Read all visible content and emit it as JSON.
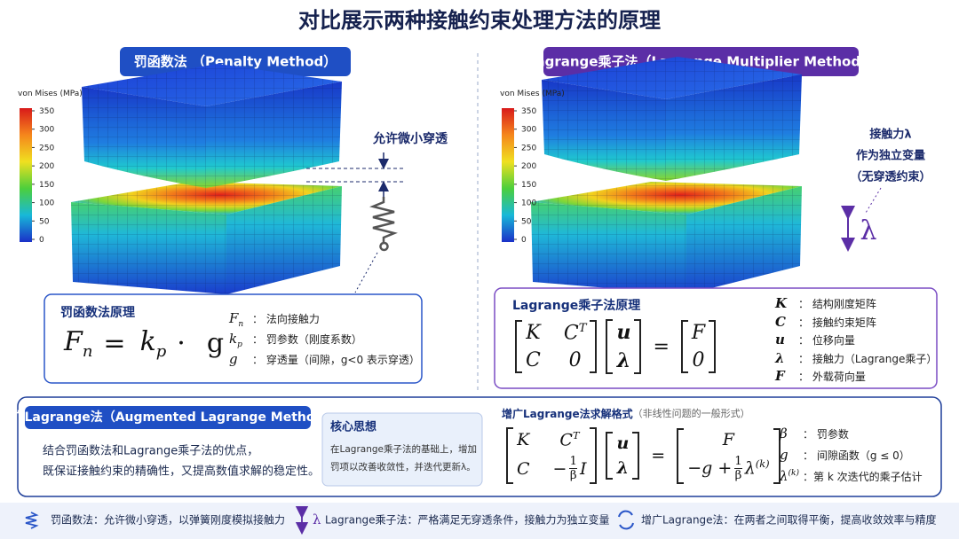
{
  "title": "对比展示两种接触约束处理方法的原理",
  "penalty": {
    "heading": "罚函数法 （Penalty Method）",
    "colorbar": {
      "label": "von Mises (MPa)",
      "ticks": [
        350,
        300,
        250,
        200,
        150,
        100,
        50,
        0
      ]
    },
    "annotation": "允许微小穿透",
    "principle": {
      "title": "罚函数法原理",
      "formula": [
        {
          "t": "F",
          "sub": "n"
        },
        "=",
        {
          "t": "k",
          "sub": "p"
        },
        "·",
        "g"
      ],
      "terms": [
        {
          "symbol": [
            {
              "t": "F",
              "sub": "n"
            }
          ],
          "desc": "：  法向接触力"
        },
        {
          "symbol": [
            {
              "t": "k",
              "sub": "p"
            }
          ],
          "desc": "：  罚参数（刚度系数）"
        },
        {
          "symbol": [
            "g"
          ],
          "desc": "：  穿透量（间隙，g<0 表示穿透）"
        }
      ]
    }
  },
  "lagrange": {
    "heading": "Lagrange乘子法（Lagrange Multiplier Method）",
    "colorbar": {
      "label": "von Mises (MPa)",
      "ticks": [
        350,
        300,
        250,
        200,
        150,
        100,
        50,
        0
      ]
    },
    "annotation": [
      "接触力λ",
      "作为独立变量",
      "（无穿透约束）"
    ],
    "arrow_label": "λ",
    "principle": {
      "title": "Lagrange乘子法原理",
      "equation": [
        {
          "matrix": [
            [
              [
                "K"
              ],
              [
                {
                  "t": "C",
                  "sup": "T"
                }
              ]
            ],
            [
              [
                "C"
              ],
              [
                "0"
              ]
            ]
          ]
        },
        {
          "matrix": [
            [
              [
                "u"
              ]
            ],
            [
              [
                "λ"
              ]
            ]
          ],
          "bold": true
        },
        "=",
        {
          "matrix": [
            [
              [
                "F"
              ]
            ],
            [
              [
                "0"
              ]
            ]
          ]
        }
      ],
      "terms": [
        {
          "symbol": [
            "K"
          ],
          "desc": "：  结构刚度矩阵"
        },
        {
          "symbol": [
            "C"
          ],
          "desc": "：  接触约束矩阵"
        },
        {
          "symbol": [
            "u"
          ],
          "desc": "：  位移向量"
        },
        {
          "symbol": [
            "λ"
          ],
          "desc": "：  接触力（Lagrange乘子）"
        },
        {
          "symbol": [
            "F"
          ],
          "desc": "：  外载荷向量"
        }
      ]
    }
  },
  "augmented": {
    "heading": "增广Lagrange法（Augmented Lagrange Method）",
    "description": [
      "结合罚函数法和Lagrange乘子法的优点，",
      "既保证接触约束的精确性，又提高数值求解的稳定性。"
    ],
    "core": {
      "title": "核心思想",
      "text": [
        "在Lagrange乘子法的基础上，增加",
        "罚项以改善收敛性，并迭代更新λ。"
      ]
    },
    "scheme": {
      "title": "增广Lagrange法求解格式",
      "subtitle": "（非线性问题的一般形式）",
      "equation": [
        {
          "matrix": [
            [
              [
                "K"
              ],
              [
                {
                  "t": "C",
                  "sup": "T"
                }
              ]
            ],
            [
              [
                "C"
              ],
              [
                "−",
                {
                  "num": "1",
                  "den": "β"
                },
                "I"
              ]
            ]
          ]
        },
        {
          "matrix": [
            [
              [
                "u"
              ]
            ],
            [
              [
                "λ"
              ]
            ]
          ],
          "bold": true
        },
        "=",
        {
          "matrix": [
            [
              [
                "F"
              ]
            ],
            [
              [
                "−g +",
                {
                  "num": "1",
                  "den": "β"
                },
                {
                  "t": "λ",
                  "sup": "(k)"
                }
              ]
            ]
          ]
        }
      ],
      "terms": [
        {
          "symbol": [
            "β"
          ],
          "desc": "：  罚参数"
        },
        {
          "symbol": [
            "g"
          ],
          "desc": "：  间隙函数（g ≤ 0）"
        },
        {
          "symbol": [
            {
              "t": "λ",
              "sup": "(k)"
            }
          ],
          "desc": "：第 k 次迭代的乘子估计"
        }
      ]
    }
  },
  "footer": [
    {
      "text": "罚函数法：允许微小穿透，以弹簧刚度模拟接触力"
    },
    {
      "icon": "λ",
      "text": "Lagrange乘子法：严格满足无穿透条件，接触力为独立变量"
    },
    {
      "text": "增广Lagrange法：在两者之间取得平衡，提高收敛效率与精度"
    }
  ]
}
